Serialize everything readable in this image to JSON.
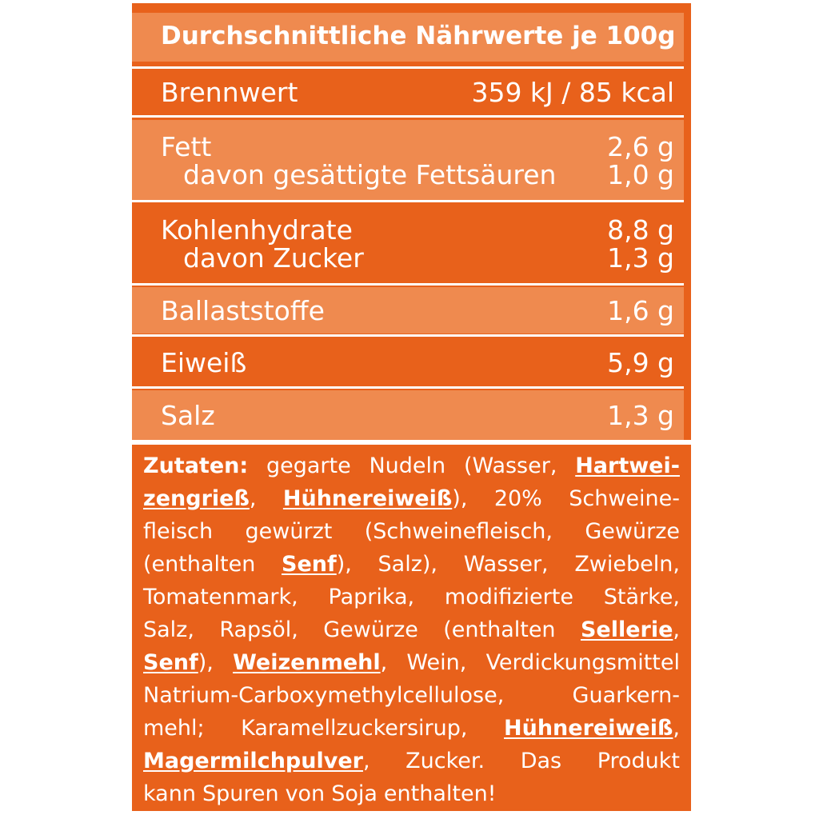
{
  "nutrition": {
    "header": "Durchschnittliche Nährwerte je 100g",
    "energy": {
      "label": "Brennwert",
      "value": "359 kJ / 85 kcal"
    },
    "fat": {
      "label": "Fett",
      "value": "2,6 g"
    },
    "saturated_fat": {
      "label": "davon gesättigte Fettsäuren",
      "value": "1,0 g"
    },
    "carbs": {
      "label": "Kohlenhydrate",
      "value": "8,8 g"
    },
    "sugar": {
      "label": "davon Zucker",
      "value": "1,3 g"
    },
    "fiber": {
      "label": "Ballaststoffe",
      "value": "1,6 g"
    },
    "protein": {
      "label": "Eiweiß",
      "value": "5,9 g"
    },
    "salt": {
      "label": "Salz",
      "value": "1,3 g"
    }
  },
  "ingredients": {
    "colors": {
      "background": "#e8611b",
      "band_light": "#ef8a4f",
      "text": "#ffffff"
    },
    "lines": [
      [
        {
          "t": "Zutaten:",
          "s": "b"
        },
        {
          "t": "gegarte",
          "s": ""
        },
        {
          "t": "Nudeln",
          "s": ""
        },
        {
          "t": "(Wasser,",
          "s": ""
        },
        {
          "t": "Hartwei-",
          "s": "bu"
        }
      ],
      [
        {
          "t": "zengrieß",
          "s": "bu"
        },
        {
          "t": ",",
          "s": ""
        },
        {
          "t": "Hühnereiweiß",
          "s": "bu"
        },
        {
          "t": "),",
          "s": ""
        },
        {
          "t": "20%",
          "s": ""
        },
        {
          "t": "Schweine-",
          "s": ""
        }
      ],
      [
        {
          "t": "fleisch",
          "s": ""
        },
        {
          "t": "gewürzt",
          "s": ""
        },
        {
          "t": "(Schweinefleisch,",
          "s": ""
        },
        {
          "t": "Gewürze",
          "s": ""
        }
      ],
      [
        {
          "t": "(enthalten",
          "s": ""
        },
        {
          "t": "Senf",
          "s": "bu"
        },
        {
          "t": "),",
          "s": ""
        },
        {
          "t": "Salz),",
          "s": ""
        },
        {
          "t": "Wasser,",
          "s": ""
        },
        {
          "t": "Zwiebeln,",
          "s": ""
        }
      ],
      [
        {
          "t": "Tomatenmark,",
          "s": ""
        },
        {
          "t": "Paprika,",
          "s": ""
        },
        {
          "t": "modifizierte",
          "s": ""
        },
        {
          "t": "Stärke,",
          "s": ""
        }
      ],
      [
        {
          "t": "Salz,",
          "s": ""
        },
        {
          "t": "Rapsöl,",
          "s": ""
        },
        {
          "t": "Gewürze",
          "s": ""
        },
        {
          "t": "(enthalten",
          "s": ""
        },
        {
          "t": "Sellerie",
          "s": "bu"
        },
        {
          "t": ",",
          "s": ""
        }
      ],
      [
        {
          "t": "Senf",
          "s": "bu"
        },
        {
          "t": "),",
          "s": ""
        },
        {
          "t": "Weizenmehl",
          "s": "bu"
        },
        {
          "t": ",",
          "s": ""
        },
        {
          "t": "Wein,",
          "s": ""
        },
        {
          "t": "Verdickungsmittel",
          "s": ""
        }
      ],
      [
        {
          "t": "Natrium-Carboxymethylcellulose,",
          "s": ""
        },
        {
          "t": "Guarkern-",
          "s": ""
        }
      ],
      [
        {
          "t": "mehl;",
          "s": ""
        },
        {
          "t": "Karamellzuckersirup,",
          "s": ""
        },
        {
          "t": "Hühnereiweiß",
          "s": "bu"
        },
        {
          "t": ",",
          "s": ""
        }
      ],
      [
        {
          "t": "Magermilchpulver",
          "s": "bu"
        },
        {
          "t": ",",
          "s": ""
        },
        {
          "t": "Zucker.",
          "s": ""
        },
        {
          "t": "Das",
          "s": ""
        },
        {
          "t": "Produkt",
          "s": ""
        }
      ],
      [
        {
          "t": "kann",
          "s": ""
        },
        {
          "t": "Spuren",
          "s": ""
        },
        {
          "t": "von",
          "s": ""
        },
        {
          "t": "Soja",
          "s": ""
        },
        {
          "t": "enthalten!",
          "s": ""
        }
      ]
    ]
  }
}
